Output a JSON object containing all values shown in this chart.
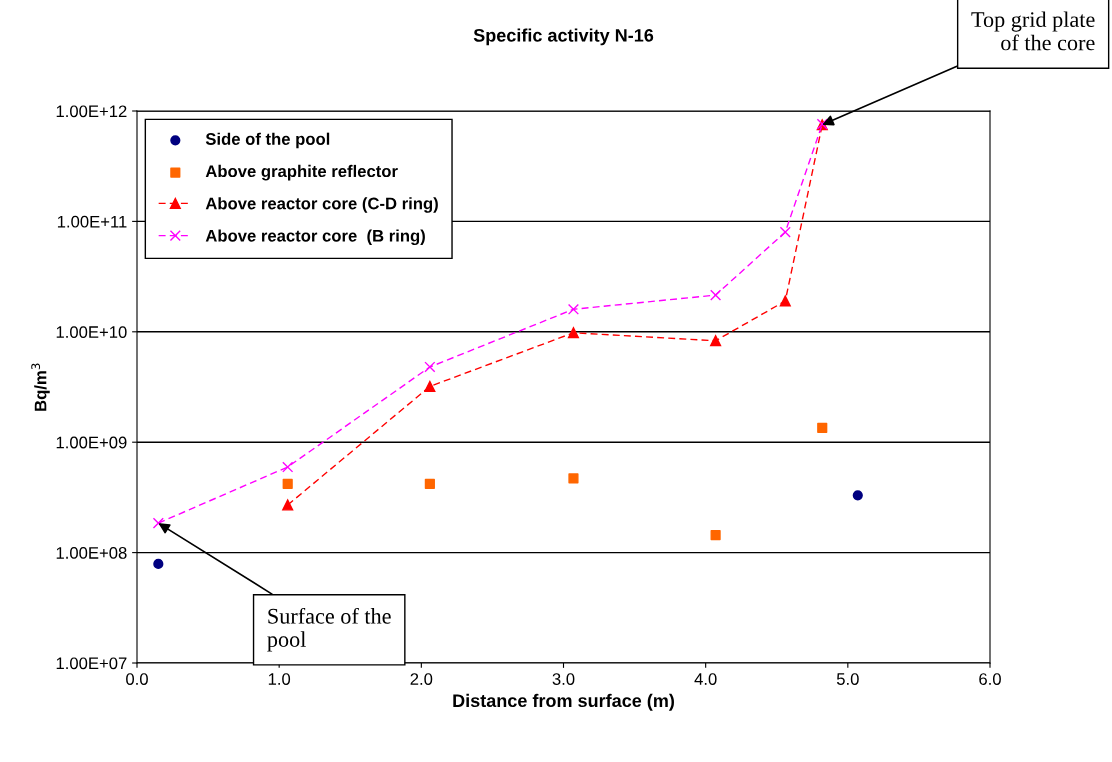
{
  "chart_data": {
    "type": "line",
    "title": "Specific activity N-16",
    "xlabel": "Distance from surface (m)",
    "ylabel": "Bq/m$^{3}$",
    "log": "y",
    "grid": "y",
    "legend": "top left",
    "xlim": [
      0,
      6
    ],
    "xticks": [
      {
        "value": 0,
        "label": "0.0"
      },
      {
        "value": 1,
        "label": "1.0"
      },
      {
        "value": 2,
        "label": "2.0"
      },
      {
        "value": 3,
        "label": "3.0"
      },
      {
        "value": 4,
        "label": "4.0"
      },
      {
        "value": 5,
        "label": "5.0"
      },
      {
        "value": 6,
        "label": "6.0"
      }
    ],
    "ylim": [
      10000000.0,
      1000000000000.0
    ],
    "yticks": [
      {
        "value": 10000000.0,
        "label": "1.00E+07"
      },
      {
        "value": 100000000.0,
        "label": "1.00E+08"
      },
      {
        "value": 1000000000.0,
        "label": "1.00E+09"
      },
      {
        "value": 10000000000.0,
        "label": "1.00E+10"
      },
      {
        "value": 100000000000.0,
        "label": "1.00E+11"
      },
      {
        "value": 1000000000000.0,
        "label": "1.00E+12"
      }
    ],
    "series": [
      {
        "name": "Side of the pool",
        "type": "scatter",
        "marker": "circle",
        "color": "#000080",
        "x": [
          0.15,
          5.07
        ],
        "values": [
          79000000.0,
          330000000.0
        ]
      },
      {
        "name": "Above graphite reflector",
        "type": "scatter",
        "marker": "square",
        "color": "#ff6600",
        "x": [
          1.06,
          2.06,
          3.07,
          4.07,
          4.82
        ],
        "values": [
          420000000.0,
          420000000.0,
          470000000.0,
          144000000.0,
          1350000000.0
        ]
      },
      {
        "name": "Above reactor core (C-D ring)",
        "marker": "triangle",
        "line_style": "dashed",
        "color": "#ff0000",
        "x": [
          1.06,
          2.06,
          3.07,
          4.07,
          4.56,
          4.82
        ],
        "values": [
          270000000.0,
          3200000000.0,
          9800000000.0,
          8300000000.0,
          19000000000.0,
          750000000000.0
        ]
      },
      {
        "name": "Above reactor core  (B ring)",
        "marker": "cross",
        "line_style": "dashed",
        "color": "#ff00ff",
        "x": [
          0.15,
          1.06,
          2.06,
          3.07,
          4.07,
          4.56,
          4.82
        ],
        "values": [
          185000000.0,
          596000000.0,
          4800000000.0,
          16000000000.0,
          21500000000.0,
          80000000000.0,
          760000000000.0
        ]
      }
    ],
    "annotations": [
      {
        "text": "Top grid plate\nof the core",
        "x": 4.82,
        "y": 750000000000.0
      },
      {
        "text": "Surface of the\npool",
        "x": 0.15,
        "y": 185000000.0
      }
    ]
  }
}
